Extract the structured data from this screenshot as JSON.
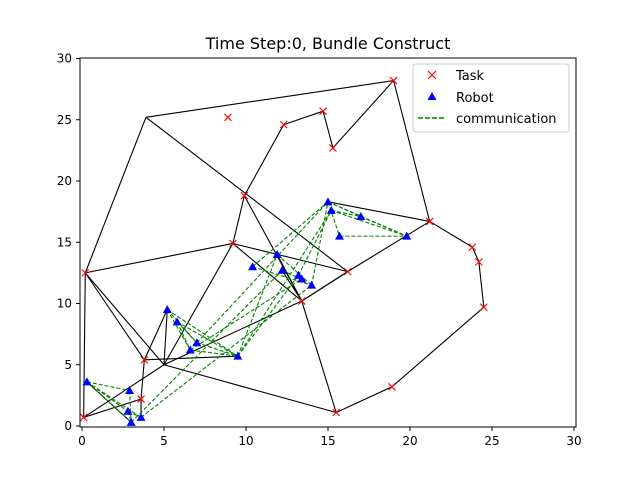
{
  "chart_data": {
    "type": "scatter",
    "title": "Time Step:0, Bundle Construct",
    "xlabel": "",
    "ylabel": "",
    "xlim": [
      0,
      30
    ],
    "ylim": [
      0,
      30
    ],
    "x_ticks": [
      0,
      5,
      10,
      15,
      20,
      25,
      30
    ],
    "y_ticks": [
      0,
      5,
      10,
      15,
      20,
      25,
      30
    ],
    "x_tick_labels": [
      "0",
      "5",
      "10",
      "15",
      "20",
      "25",
      "30"
    ],
    "y_tick_labels": [
      "0",
      "5",
      "10",
      "15",
      "20",
      "25",
      "30"
    ],
    "grid": false,
    "legend_position": "top-right",
    "legend": [
      {
        "label": "Task",
        "marker": "x",
        "color": "#ff0000"
      },
      {
        "label": "Robot",
        "marker": "triangle",
        "color": "#0000ff"
      },
      {
        "label": "communication",
        "marker": "dashed-line",
        "color": "#008000"
      }
    ],
    "tasks": [
      [
        0.1,
        0.7
      ],
      [
        0.2,
        12.5
      ],
      [
        3.6,
        2.2
      ],
      [
        3.8,
        5.4
      ],
      [
        8.9,
        25.2
      ],
      [
        9.2,
        14.9
      ],
      [
        9.9,
        18.8
      ],
      [
        12.3,
        24.6
      ],
      [
        14.7,
        25.7
      ],
      [
        15.3,
        22.7
      ],
      [
        13.4,
        10.2
      ],
      [
        16.2,
        12.6
      ],
      [
        15.5,
        1.1
      ],
      [
        18.9,
        3.2
      ],
      [
        19.0,
        28.2
      ],
      [
        21.2,
        16.7
      ],
      [
        23.8,
        14.6
      ],
      [
        24.2,
        13.4
      ],
      [
        24.5,
        9.7
      ]
    ],
    "robots": [
      [
        0.3,
        3.6
      ],
      [
        2.8,
        1.2
      ],
      [
        2.9,
        2.9
      ],
      [
        3.0,
        0.3
      ],
      [
        3.6,
        0.7
      ],
      [
        5.2,
        9.5
      ],
      [
        5.8,
        8.5
      ],
      [
        6.6,
        6.2
      ],
      [
        7.0,
        6.8
      ],
      [
        9.5,
        5.7
      ],
      [
        10.4,
        13.0
      ],
      [
        11.9,
        14.0
      ],
      [
        12.2,
        12.7
      ],
      [
        13.2,
        12.3
      ],
      [
        13.4,
        12.0
      ],
      [
        14.0,
        11.5
      ],
      [
        15.0,
        18.3
      ],
      [
        15.2,
        17.6
      ],
      [
        15.7,
        15.5
      ],
      [
        17.0,
        17.1
      ],
      [
        19.8,
        15.5
      ]
    ],
    "task_edges": [
      [
        0.1,
        0.7,
        0.2,
        12.5
      ],
      [
        0.2,
        12.5,
        3.9,
        25.2
      ],
      [
        3.9,
        25.2,
        19.0,
        28.2
      ],
      [
        19.0,
        28.2,
        21.2,
        16.7
      ],
      [
        21.2,
        16.7,
        23.8,
        14.6
      ],
      [
        23.8,
        14.6,
        24.2,
        13.4
      ],
      [
        24.2,
        13.4,
        24.5,
        9.7
      ],
      [
        24.5,
        9.7,
        18.9,
        3.2
      ],
      [
        18.9,
        3.2,
        15.5,
        1.1
      ],
      [
        15.5,
        1.1,
        13.4,
        10.2
      ],
      [
        3.9,
        25.2,
        16.2,
        12.6
      ],
      [
        0.2,
        12.5,
        9.2,
        14.9
      ],
      [
        9.2,
        14.9,
        13.4,
        10.2
      ],
      [
        9.2,
        14.9,
        16.2,
        12.6
      ],
      [
        9.9,
        18.8,
        12.3,
        24.6
      ],
      [
        12.3,
        24.6,
        14.7,
        25.7
      ],
      [
        14.7,
        25.7,
        15.3,
        22.7
      ],
      [
        15.3,
        22.7,
        19.0,
        28.2
      ],
      [
        9.9,
        18.8,
        13.4,
        10.2
      ],
      [
        9.9,
        18.8,
        9.2,
        14.9
      ],
      [
        15.0,
        18.3,
        21.2,
        16.7
      ],
      [
        21.2,
        16.7,
        16.2,
        12.6
      ],
      [
        16.2,
        12.6,
        13.4,
        10.2
      ],
      [
        0.2,
        12.5,
        3.8,
        5.4
      ],
      [
        3.8,
        5.4,
        3.6,
        2.2
      ],
      [
        3.6,
        2.2,
        3.6,
        0.7
      ],
      [
        0.1,
        0.7,
        5.0,
        5.0
      ],
      [
        0.2,
        12.5,
        5.0,
        5.0
      ],
      [
        5.0,
        5.0,
        5.2,
        9.5
      ],
      [
        5.2,
        9.5,
        3.8,
        5.4
      ],
      [
        5.0,
        5.0,
        13.4,
        10.2
      ],
      [
        5.0,
        5.0,
        9.2,
        14.9
      ],
      [
        5.0,
        5.0,
        15.5,
        1.1
      ],
      [
        3.8,
        5.4,
        9.5,
        5.7
      ],
      [
        0.3,
        3.6,
        3.0,
        0.3
      ],
      [
        0.1,
        0.7,
        3.6,
        2.2
      ],
      [
        13.4,
        10.2,
        16.2,
        12.6
      ],
      [
        11.9,
        14.0,
        13.4,
        10.2
      ],
      [
        12.2,
        12.7,
        13.4,
        10.2
      ]
    ],
    "communication_edges": [
      [
        0.3,
        3.6,
        2.8,
        1.2
      ],
      [
        0.3,
        3.6,
        2.9,
        2.9
      ],
      [
        0.3,
        3.6,
        3.0,
        0.3
      ],
      [
        0.3,
        3.6,
        3.6,
        0.7
      ],
      [
        2.8,
        1.2,
        3.6,
        0.7
      ],
      [
        2.9,
        2.9,
        3.0,
        0.3
      ],
      [
        2.8,
        1.2,
        3.0,
        0.3
      ],
      [
        5.2,
        9.5,
        9.5,
        5.7
      ],
      [
        5.2,
        9.5,
        6.6,
        6.2
      ],
      [
        5.8,
        8.5,
        9.5,
        5.7
      ],
      [
        5.8,
        8.5,
        6.6,
        6.2
      ],
      [
        5.8,
        8.5,
        7.0,
        6.8
      ],
      [
        6.6,
        6.2,
        9.5,
        5.7
      ],
      [
        7.0,
        6.8,
        9.5,
        5.7
      ],
      [
        5.2,
        9.5,
        7.0,
        6.8
      ],
      [
        6.6,
        6.2,
        13.4,
        12.0
      ],
      [
        7.0,
        6.8,
        15.0,
        18.3
      ],
      [
        9.5,
        5.7,
        13.2,
        12.3
      ],
      [
        9.5,
        5.7,
        15.2,
        17.6
      ],
      [
        3.0,
        0.3,
        12.2,
        12.7
      ],
      [
        3.6,
        0.7,
        14.0,
        11.5
      ],
      [
        9.5,
        5.7,
        11.9,
        14.0
      ],
      [
        10.4,
        13.0,
        15.0,
        18.3
      ],
      [
        10.4,
        13.0,
        14.0,
        11.5
      ],
      [
        11.9,
        14.0,
        14.0,
        11.5
      ],
      [
        12.2,
        12.7,
        13.4,
        12.0
      ],
      [
        13.2,
        12.3,
        15.2,
        17.6
      ],
      [
        15.0,
        18.3,
        17.0,
        17.1
      ],
      [
        15.0,
        18.3,
        19.8,
        15.5
      ],
      [
        15.2,
        17.6,
        19.8,
        15.5
      ],
      [
        15.7,
        15.5,
        19.8,
        15.5
      ],
      [
        17.0,
        17.1,
        19.8,
        15.5
      ],
      [
        15.0,
        18.3,
        15.7,
        15.5
      ],
      [
        15.2,
        17.6,
        17.0,
        17.1
      ],
      [
        14.0,
        11.5,
        15.0,
        18.3
      ]
    ]
  }
}
